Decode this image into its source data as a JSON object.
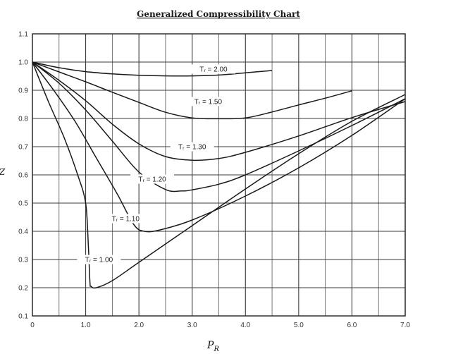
{
  "chart_data": {
    "type": "line",
    "title": "Generalized Compressibility Chart",
    "xlabel": "P_R",
    "ylabel": "Z",
    "xlim": [
      0,
      7.0
    ],
    "ylim": [
      0.1,
      1.1
    ],
    "x_ticks": [
      "0",
      "1.0",
      "2.0",
      "3.0",
      "4.0",
      "5.0",
      "6.0",
      "7.0"
    ],
    "y_ticks": [
      "0.1",
      "0.2",
      "0.3",
      "0.4",
      "0.5",
      "0.6",
      "0.7",
      "0.8",
      "0.9",
      "1.0",
      "1.1"
    ],
    "grid": true,
    "series": [
      {
        "name": "Tr = 2.00",
        "label": "Tᵣ = 2.00",
        "label_at": [
          3.4,
          0.975
        ],
        "points": [
          [
            0,
            1.0
          ],
          [
            0.5,
            0.98
          ],
          [
            1.0,
            0.966
          ],
          [
            1.5,
            0.958
          ],
          [
            2.0,
            0.953
          ],
          [
            2.5,
            0.951
          ],
          [
            3.0,
            0.951
          ],
          [
            3.5,
            0.954
          ],
          [
            4.0,
            0.962
          ],
          [
            4.5,
            0.97
          ]
        ]
      },
      {
        "name": "Tr = 1.50",
        "label": "Tᵣ = 1.50",
        "label_at": [
          3.3,
          0.86
        ],
        "points": [
          [
            0,
            1.0
          ],
          [
            0.5,
            0.965
          ],
          [
            1.0,
            0.93
          ],
          [
            1.5,
            0.893
          ],
          [
            2.0,
            0.857
          ],
          [
            2.5,
            0.822
          ],
          [
            3.0,
            0.802
          ],
          [
            3.5,
            0.799
          ],
          [
            4.0,
            0.802
          ],
          [
            4.5,
            0.823
          ],
          [
            5.0,
            0.848
          ],
          [
            5.5,
            0.872
          ],
          [
            6.0,
            0.898
          ]
        ]
      },
      {
        "name": "Tr = 1.30",
        "label": "Tᵣ = 1.30",
        "label_at": [
          3.0,
          0.7
        ],
        "points": [
          [
            0,
            1.0
          ],
          [
            0.5,
            0.935
          ],
          [
            1.0,
            0.863
          ],
          [
            1.5,
            0.78
          ],
          [
            2.0,
            0.71
          ],
          [
            2.5,
            0.665
          ],
          [
            3.0,
            0.652
          ],
          [
            3.5,
            0.658
          ],
          [
            4.0,
            0.68
          ],
          [
            5.0,
            0.738
          ],
          [
            6.0,
            0.803
          ],
          [
            7.0,
            0.86
          ]
        ]
      },
      {
        "name": "Tr = 1.20",
        "label": "Tᵣ = 1.20",
        "label_at": [
          2.25,
          0.585
        ],
        "points": [
          [
            0,
            1.0
          ],
          [
            0.5,
            0.925
          ],
          [
            1.0,
            0.83
          ],
          [
            1.5,
            0.72
          ],
          [
            2.0,
            0.61
          ],
          [
            2.5,
            0.548
          ],
          [
            2.8,
            0.543
          ],
          [
            3.0,
            0.547
          ],
          [
            3.5,
            0.567
          ],
          [
            4.0,
            0.6
          ],
          [
            5.0,
            0.685
          ],
          [
            6.0,
            0.775
          ],
          [
            7.0,
            0.87
          ]
        ]
      },
      {
        "name": "Tr = 1.10",
        "label": "Tᵣ = 1.10",
        "label_at": [
          1.75,
          0.445
        ],
        "points": [
          [
            0,
            1.0
          ],
          [
            0.4,
            0.9
          ],
          [
            0.8,
            0.79
          ],
          [
            1.2,
            0.66
          ],
          [
            1.6,
            0.53
          ],
          [
            1.9,
            0.425
          ],
          [
            2.1,
            0.4
          ],
          [
            2.4,
            0.405
          ],
          [
            3.0,
            0.44
          ],
          [
            4.0,
            0.525
          ],
          [
            5.0,
            0.625
          ],
          [
            6.0,
            0.74
          ],
          [
            7.0,
            0.87
          ]
        ]
      },
      {
        "name": "Tr = 1.00",
        "label": "Tᵣ = 1.00",
        "label_at": [
          1.25,
          0.3
        ],
        "points": [
          [
            0,
            1.0
          ],
          [
            0.3,
            0.86
          ],
          [
            0.6,
            0.73
          ],
          [
            0.85,
            0.6
          ],
          [
            1.0,
            0.5
          ],
          [
            1.05,
            0.35
          ],
          [
            1.08,
            0.22
          ],
          [
            1.1,
            0.205
          ],
          [
            1.2,
            0.2
          ],
          [
            1.5,
            0.225
          ],
          [
            2.0,
            0.29
          ],
          [
            3.0,
            0.42
          ],
          [
            4.0,
            0.55
          ],
          [
            5.0,
            0.675
          ],
          [
            6.0,
            0.79
          ],
          [
            7.0,
            0.885
          ]
        ]
      }
    ]
  }
}
